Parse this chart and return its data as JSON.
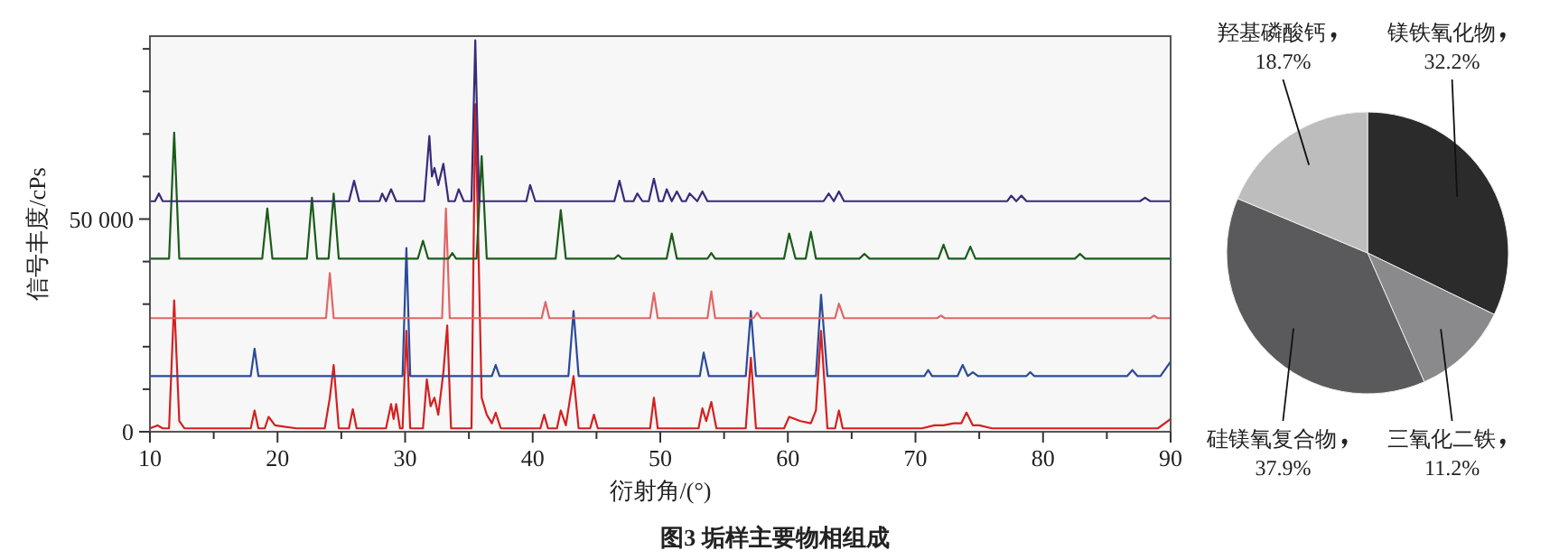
{
  "chart_data": [
    {
      "type": "line",
      "xlabel": "衍射角/(°)",
      "ylabel": "信号丰度/cPs",
      "xlim": [
        10,
        90
      ],
      "ylim": [
        0,
        93000
      ],
      "xticks": [
        10,
        {
          "value": 15,
          "label": null
        },
        20,
        {
          "value": 25,
          "label": null
        },
        30,
        {
          "value": 35,
          "label": null
        },
        40,
        {
          "value": 45,
          "label": null
        },
        50,
        {
          "value": 55,
          "label": null
        },
        60,
        {
          "value": 65,
          "label": null
        },
        70,
        {
          "value": 75,
          "label": null
        },
        80,
        {
          "value": 85,
          "label": null
        },
        90
      ],
      "yticks": [
        0,
        {
          "value": 10000,
          "label": null
        },
        {
          "value": 20000,
          "label": null
        },
        {
          "value": 30000,
          "label": null
        },
        {
          "value": 40000,
          "label": null
        },
        {
          "value": 50000,
          "label": "50 000"
        },
        {
          "value": 60000,
          "label": null
        },
        {
          "value": 70000,
          "label": null
        },
        {
          "value": 80000,
          "label": null
        },
        {
          "value": 90000,
          "label": null
        }
      ],
      "annotations": [
        "图3   垢样主要物相组成"
      ],
      "series": [
        {
          "color": "#d42020",
          "x": [
            10,
            10.6,
            11.0,
            11.5,
            11.9,
            12.3,
            12.7,
            17.9,
            18.2,
            18.5,
            19.0,
            19.3,
            19.8,
            20.5,
            21.5,
            23.7,
            24.1,
            24.4,
            24.8,
            25.6,
            25.9,
            26.2,
            28.5,
            28.9,
            29.1,
            29.3,
            29.6,
            29.8,
            30.1,
            30.4,
            31.4,
            31.7,
            32.0,
            32.3,
            32.6,
            33.0,
            33.3,
            33.6,
            35.2,
            35.5,
            36.0,
            36.4,
            36.8,
            37.1,
            37.5,
            40.6,
            40.9,
            41.2,
            41.9,
            42.2,
            42.6,
            43.2,
            43.6,
            44.5,
            44.8,
            45.1,
            49.2,
            49.5,
            49.8,
            53.0,
            53.3,
            53.6,
            54.0,
            54.4,
            56.7,
            57.1,
            57.5,
            59.7,
            60.1,
            61.0,
            61.8,
            62.2,
            62.6,
            63.1,
            63.7,
            64.0,
            64.3,
            70.5,
            71.5,
            72.2,
            73.0,
            73.6,
            74.0,
            74.5,
            75.0,
            76.0,
            89.0,
            90
          ],
          "values": [
            800,
            1500,
            800,
            800,
            30900,
            2500,
            800,
            800,
            5000,
            800,
            800,
            3500,
            1500,
            1200,
            800,
            800,
            8000,
            15700,
            800,
            800,
            5300,
            800,
            800,
            6500,
            3000,
            6500,
            800,
            800,
            23700,
            800,
            800,
            12300,
            6000,
            8000,
            4000,
            14000,
            25000,
            800,
            800,
            77000,
            8000,
            4000,
            2000,
            4500,
            800,
            800,
            4000,
            800,
            800,
            5000,
            1500,
            13100,
            800,
            800,
            4000,
            800,
            800,
            8000,
            800,
            800,
            5500,
            2500,
            7000,
            800,
            800,
            17400,
            800,
            800,
            3500,
            2500,
            2000,
            5000,
            23700,
            800,
            800,
            5000,
            800,
            800,
            1500,
            1500,
            2000,
            2000,
            4500,
            1500,
            1500,
            800,
            800,
            3000
          ]
        },
        {
          "color": "#2a4a9a",
          "x": [
            10,
            17.9,
            18.2,
            18.5,
            29.8,
            30.1,
            30.4,
            36.8,
            37.1,
            37.4,
            42.8,
            43.2,
            43.6,
            53.1,
            53.4,
            53.8,
            56.7,
            57.1,
            57.5,
            62.2,
            62.6,
            63.1,
            70.7,
            71.0,
            71.3,
            73.3,
            73.7,
            74.1,
            74.5,
            74.9,
            78.7,
            79.0,
            79.3,
            86.6,
            87.0,
            87.4,
            89.2,
            90
          ],
          "values": [
            13100,
            13100,
            19500,
            13100,
            13100,
            43200,
            13100,
            13100,
            15700,
            13100,
            13100,
            28400,
            13100,
            13100,
            18600,
            13100,
            13100,
            28400,
            13100,
            13100,
            32200,
            13100,
            13100,
            14500,
            13100,
            13100,
            15700,
            13100,
            14000,
            13100,
            13100,
            14000,
            13100,
            13100,
            14500,
            13100,
            13100,
            16500
          ]
        },
        {
          "color": "#e06666",
          "x": [
            10,
            23.8,
            24.1,
            24.4,
            32.9,
            33.2,
            33.5,
            40.7,
            41.0,
            41.3,
            49.2,
            49.5,
            49.8,
            53.7,
            54.0,
            54.3,
            57.3,
            57.6,
            57.9,
            63.7,
            64.0,
            64.4,
            71.7,
            72.0,
            72.3,
            88.4,
            88.7,
            89.0,
            90
          ],
          "values": [
            26700,
            26700,
            37300,
            26700,
            26700,
            52500,
            26700,
            26700,
            30500,
            26700,
            26700,
            32600,
            26700,
            26700,
            33000,
            26700,
            26700,
            28000,
            26700,
            26700,
            30100,
            26700,
            26700,
            27300,
            26700,
            26700,
            27300,
            26700,
            26700
          ]
        },
        {
          "color": "#1a5c1a",
          "x": [
            10,
            11.5,
            11.9,
            12.3,
            18.8,
            19.2,
            19.6,
            22.3,
            22.7,
            23.1,
            24.0,
            24.4,
            24.8,
            31.0,
            31.4,
            31.8,
            33.4,
            33.7,
            34.0,
            35.6,
            36.0,
            36.4,
            41.8,
            42.2,
            42.6,
            46.4,
            46.7,
            47.0,
            50.5,
            50.9,
            51.3,
            53.7,
            54.0,
            54.3,
            59.7,
            60.1,
            60.6,
            61.4,
            61.8,
            62.2,
            65.6,
            66.0,
            66.4,
            71.8,
            72.2,
            72.6,
            73.9,
            74.3,
            74.7,
            82.5,
            82.9,
            83.3,
            90
          ],
          "values": [
            40700,
            40700,
            70300,
            40700,
            40700,
            52500,
            40700,
            40700,
            55000,
            40700,
            40700,
            56000,
            40700,
            40700,
            44900,
            40700,
            40700,
            42000,
            40700,
            40700,
            64800,
            40700,
            40700,
            52100,
            40700,
            40700,
            41500,
            40700,
            40700,
            46600,
            40700,
            40700,
            42000,
            40700,
            40700,
            46600,
            40700,
            40700,
            47000,
            40700,
            40700,
            41800,
            40700,
            40700,
            44000,
            40700,
            40700,
            43500,
            40700,
            40700,
            41800,
            40700,
            40700
          ]
        },
        {
          "color": "#3a2a7a",
          "x": [
            10,
            10.4,
            10.7,
            11.0,
            25.6,
            26.0,
            26.4,
            28.0,
            28.2,
            28.5,
            28.9,
            29.3,
            31.5,
            31.9,
            32.1,
            32.3,
            32.6,
            33.0,
            33.4,
            33.9,
            34.2,
            34.6,
            35.2,
            35.5,
            35.8,
            39.5,
            39.8,
            40.2,
            46.4,
            46.8,
            47.2,
            47.9,
            48.2,
            48.6,
            49.1,
            49.5,
            49.9,
            50.2,
            50.5,
            50.9,
            51.3,
            51.7,
            52.0,
            52.3,
            52.9,
            53.3,
            53.7,
            62.8,
            63.2,
            63.6,
            64.0,
            64.4,
            77.2,
            77.5,
            77.9,
            78.3,
            78.7,
            87.6,
            88.0,
            88.4,
            90
          ],
          "values": [
            54200,
            54200,
            56000,
            54200,
            54200,
            59000,
            54200,
            54200,
            56000,
            54200,
            57000,
            54200,
            54200,
            69500,
            60000,
            62000,
            58000,
            63000,
            54200,
            54200,
            57000,
            54200,
            54200,
            92000,
            54200,
            54200,
            58000,
            54200,
            54200,
            59000,
            54200,
            54200,
            56000,
            54200,
            54200,
            59500,
            54200,
            54200,
            57000,
            54200,
            56500,
            54200,
            54200,
            56000,
            54200,
            56500,
            54200,
            54200,
            56000,
            54200,
            56500,
            54200,
            54200,
            55500,
            54200,
            55500,
            54200,
            54200,
            55000,
            54200,
            54200
          ]
        }
      ]
    },
    {
      "type": "pie",
      "categories": [
        "镁铁氧化物",
        "三氧化二铁",
        "硅镁氧复合物",
        "羟基磷酸钙"
      ],
      "values": [
        32.2,
        11.2,
        37.9,
        18.7
      ],
      "value_labels": [
        "32.2%",
        "11.2%",
        "37.9%",
        "18.7%"
      ],
      "colors": [
        "#2b2b2b",
        "#8a8a8c",
        "#5a5a5c",
        "#bdbdbd"
      ]
    }
  ]
}
